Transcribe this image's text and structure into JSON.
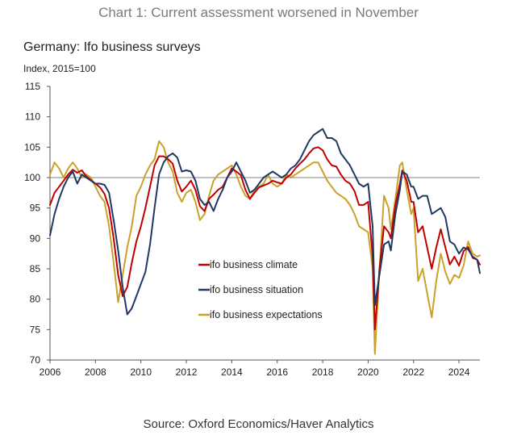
{
  "page": {
    "heading": "Chart 1: Current assessment worsened in November",
    "source": "Source: Oxford Economics/Haver Analytics"
  },
  "colors": {
    "climate": "#c00000",
    "situation": "#1f3864",
    "expectations": "#c9a227",
    "reference": "#9a9a9a",
    "axis": "#555555"
  },
  "chart_data": {
    "type": "line",
    "title": "Germany: Ifo business surveys",
    "ylabel": "Index, 2015=100",
    "xlabel": "",
    "xlim": [
      2006,
      2024.92
    ],
    "ylim": [
      70,
      115
    ],
    "reference_line": 100,
    "x_ticks": [
      2006,
      2008,
      2010,
      2012,
      2014,
      2016,
      2018,
      2020,
      2022,
      2024
    ],
    "y_ticks": [
      70,
      75,
      80,
      85,
      90,
      95,
      100,
      105,
      110,
      115
    ],
    "legend_position": "center-left",
    "series": [
      {
        "name": "ifo business climate",
        "color_key": "climate",
        "points": [
          [
            2006.0,
            95.5
          ],
          [
            2006.2,
            97.5
          ],
          [
            2006.4,
            98.5
          ],
          [
            2006.6,
            99.5
          ],
          [
            2006.8,
            100.5
          ],
          [
            2007.0,
            101.3
          ],
          [
            2007.2,
            100.8
          ],
          [
            2007.4,
            101.2
          ],
          [
            2007.6,
            100.2
          ],
          [
            2007.8,
            99.6
          ],
          [
            2008.0,
            99.0
          ],
          [
            2008.2,
            98.4
          ],
          [
            2008.4,
            97.3
          ],
          [
            2008.6,
            95.0
          ],
          [
            2008.8,
            90.0
          ],
          [
            2009.0,
            84.0
          ],
          [
            2009.2,
            80.5
          ],
          [
            2009.4,
            82.0
          ],
          [
            2009.6,
            86.0
          ],
          [
            2009.8,
            89.5
          ],
          [
            2010.0,
            92.0
          ],
          [
            2010.2,
            95.0
          ],
          [
            2010.4,
            98.5
          ],
          [
            2010.6,
            102.0
          ],
          [
            2010.8,
            103.5
          ],
          [
            2011.0,
            103.5
          ],
          [
            2011.2,
            103.0
          ],
          [
            2011.4,
            102.3
          ],
          [
            2011.6,
            99.5
          ],
          [
            2011.8,
            97.7
          ],
          [
            2012.0,
            98.5
          ],
          [
            2012.2,
            99.5
          ],
          [
            2012.4,
            98.0
          ],
          [
            2012.6,
            95.3
          ],
          [
            2012.8,
            94.5
          ],
          [
            2013.0,
            96.5
          ],
          [
            2013.2,
            97.2
          ],
          [
            2013.4,
            98.0
          ],
          [
            2013.6,
            98.5
          ],
          [
            2013.8,
            100.0
          ],
          [
            2014.0,
            101.5
          ],
          [
            2014.2,
            101.0
          ],
          [
            2014.4,
            100.4
          ],
          [
            2014.6,
            98.0
          ],
          [
            2014.8,
            96.5
          ],
          [
            2015.0,
            97.5
          ],
          [
            2015.2,
            98.4
          ],
          [
            2015.4,
            98.7
          ],
          [
            2015.6,
            99.0
          ],
          [
            2015.8,
            99.5
          ],
          [
            2016.0,
            99.2
          ],
          [
            2016.2,
            99.0
          ],
          [
            2016.4,
            100.0
          ],
          [
            2016.6,
            100.5
          ],
          [
            2016.8,
            101.5
          ],
          [
            2017.0,
            102.3
          ],
          [
            2017.2,
            103.0
          ],
          [
            2017.4,
            104.0
          ],
          [
            2017.6,
            104.8
          ],
          [
            2017.8,
            105.0
          ],
          [
            2018.0,
            104.5
          ],
          [
            2018.2,
            103.0
          ],
          [
            2018.4,
            102.0
          ],
          [
            2018.6,
            101.8
          ],
          [
            2018.8,
            100.5
          ],
          [
            2019.0,
            99.5
          ],
          [
            2019.2,
            99.0
          ],
          [
            2019.4,
            97.8
          ],
          [
            2019.6,
            95.5
          ],
          [
            2019.8,
            95.5
          ],
          [
            2020.0,
            96.0
          ],
          [
            2020.2,
            87.0
          ],
          [
            2020.3,
            75.0
          ],
          [
            2020.5,
            85.0
          ],
          [
            2020.7,
            92.0
          ],
          [
            2020.9,
            91.0
          ],
          [
            2021.0,
            90.0
          ],
          [
            2021.2,
            95.5
          ],
          [
            2021.4,
            99.0
          ],
          [
            2021.5,
            101.2
          ],
          [
            2021.7,
            99.5
          ],
          [
            2021.9,
            96.0
          ],
          [
            2022.0,
            96.0
          ],
          [
            2022.2,
            91.0
          ],
          [
            2022.4,
            92.0
          ],
          [
            2022.6,
            88.5
          ],
          [
            2022.8,
            85.0
          ],
          [
            2023.0,
            88.5
          ],
          [
            2023.2,
            91.5
          ],
          [
            2023.4,
            88.5
          ],
          [
            2023.6,
            85.7
          ],
          [
            2023.8,
            87.0
          ],
          [
            2024.0,
            85.5
          ],
          [
            2024.2,
            87.9
          ],
          [
            2024.4,
            88.6
          ],
          [
            2024.6,
            86.8
          ],
          [
            2024.8,
            86.5
          ],
          [
            2024.92,
            85.7
          ]
        ]
      },
      {
        "name": "ifo business situation",
        "color_key": "situation",
        "points": [
          [
            2006.0,
            90.5
          ],
          [
            2006.2,
            94.0
          ],
          [
            2006.4,
            96.5
          ],
          [
            2006.6,
            98.5
          ],
          [
            2006.8,
            100.0
          ],
          [
            2007.0,
            101.0
          ],
          [
            2007.2,
            99.0
          ],
          [
            2007.4,
            100.5
          ],
          [
            2007.6,
            100.0
          ],
          [
            2007.8,
            99.5
          ],
          [
            2008.0,
            99.0
          ],
          [
            2008.2,
            99.0
          ],
          [
            2008.4,
            98.8
          ],
          [
            2008.6,
            97.5
          ],
          [
            2008.8,
            93.0
          ],
          [
            2009.0,
            88.0
          ],
          [
            2009.2,
            82.0
          ],
          [
            2009.4,
            77.5
          ],
          [
            2009.6,
            78.5
          ],
          [
            2009.8,
            80.5
          ],
          [
            2010.0,
            82.5
          ],
          [
            2010.2,
            84.5
          ],
          [
            2010.4,
            89.0
          ],
          [
            2010.6,
            95.0
          ],
          [
            2010.8,
            100.5
          ],
          [
            2011.0,
            102.5
          ],
          [
            2011.2,
            103.5
          ],
          [
            2011.4,
            104.0
          ],
          [
            2011.6,
            103.3
          ],
          [
            2011.8,
            101.0
          ],
          [
            2012.0,
            101.2
          ],
          [
            2012.2,
            101.0
          ],
          [
            2012.4,
            99.5
          ],
          [
            2012.6,
            96.5
          ],
          [
            2012.8,
            95.5
          ],
          [
            2013.0,
            96.0
          ],
          [
            2013.2,
            94.5
          ],
          [
            2013.4,
            96.5
          ],
          [
            2013.6,
            98.0
          ],
          [
            2013.8,
            100.0
          ],
          [
            2014.0,
            101.0
          ],
          [
            2014.2,
            102.5
          ],
          [
            2014.4,
            101.0
          ],
          [
            2014.6,
            99.5
          ],
          [
            2014.8,
            97.5
          ],
          [
            2015.0,
            98.0
          ],
          [
            2015.2,
            99.0
          ],
          [
            2015.4,
            100.0
          ],
          [
            2015.6,
            100.5
          ],
          [
            2015.8,
            101.0
          ],
          [
            2016.0,
            100.5
          ],
          [
            2016.2,
            100.0
          ],
          [
            2016.4,
            100.5
          ],
          [
            2016.6,
            101.5
          ],
          [
            2016.8,
            102.0
          ],
          [
            2017.0,
            103.0
          ],
          [
            2017.2,
            104.5
          ],
          [
            2017.4,
            106.0
          ],
          [
            2017.6,
            107.0
          ],
          [
            2017.8,
            107.5
          ],
          [
            2018.0,
            108.0
          ],
          [
            2018.2,
            106.5
          ],
          [
            2018.4,
            106.5
          ],
          [
            2018.6,
            106.0
          ],
          [
            2018.8,
            104.0
          ],
          [
            2019.0,
            103.0
          ],
          [
            2019.2,
            102.0
          ],
          [
            2019.4,
            100.5
          ],
          [
            2019.6,
            99.0
          ],
          [
            2019.8,
            98.5
          ],
          [
            2020.0,
            99.0
          ],
          [
            2020.2,
            92.0
          ],
          [
            2020.3,
            79.0
          ],
          [
            2020.5,
            84.0
          ],
          [
            2020.7,
            89.0
          ],
          [
            2020.9,
            89.5
          ],
          [
            2021.0,
            88.0
          ],
          [
            2021.2,
            94.0
          ],
          [
            2021.4,
            98.0
          ],
          [
            2021.5,
            101.0
          ],
          [
            2021.7,
            100.5
          ],
          [
            2021.9,
            98.5
          ],
          [
            2022.0,
            98.5
          ],
          [
            2022.2,
            96.5
          ],
          [
            2022.4,
            97.0
          ],
          [
            2022.6,
            97.0
          ],
          [
            2022.8,
            94.0
          ],
          [
            2023.0,
            94.5
          ],
          [
            2023.2,
            95.0
          ],
          [
            2023.4,
            93.5
          ],
          [
            2023.6,
            89.5
          ],
          [
            2023.8,
            89.0
          ],
          [
            2024.0,
            87.5
          ],
          [
            2024.2,
            88.5
          ],
          [
            2024.4,
            88.2
          ],
          [
            2024.6,
            87.0
          ],
          [
            2024.8,
            86.5
          ],
          [
            2024.92,
            84.3
          ]
        ]
      },
      {
        "name": "ifo business expectations",
        "color_key": "expectations",
        "points": [
          [
            2006.0,
            100.5
          ],
          [
            2006.2,
            102.5
          ],
          [
            2006.4,
            101.5
          ],
          [
            2006.6,
            100.0
          ],
          [
            2006.8,
            101.5
          ],
          [
            2007.0,
            102.5
          ],
          [
            2007.2,
            101.5
          ],
          [
            2007.4,
            100.0
          ],
          [
            2007.6,
            100.5
          ],
          [
            2007.8,
            100.0
          ],
          [
            2008.0,
            98.5
          ],
          [
            2008.2,
            97.0
          ],
          [
            2008.4,
            96.0
          ],
          [
            2008.6,
            92.0
          ],
          [
            2008.8,
            86.0
          ],
          [
            2009.0,
            79.5
          ],
          [
            2009.2,
            84.0
          ],
          [
            2009.4,
            88.5
          ],
          [
            2009.6,
            92.0
          ],
          [
            2009.8,
            97.0
          ],
          [
            2010.0,
            98.5
          ],
          [
            2010.2,
            100.5
          ],
          [
            2010.4,
            102.0
          ],
          [
            2010.6,
            103.0
          ],
          [
            2010.8,
            106.0
          ],
          [
            2011.0,
            105.0
          ],
          [
            2011.2,
            102.5
          ],
          [
            2011.4,
            101.0
          ],
          [
            2011.6,
            97.5
          ],
          [
            2011.8,
            96.0
          ],
          [
            2012.0,
            97.5
          ],
          [
            2012.2,
            98.0
          ],
          [
            2012.4,
            96.0
          ],
          [
            2012.6,
            93.0
          ],
          [
            2012.8,
            94.0
          ],
          [
            2013.0,
            97.0
          ],
          [
            2013.2,
            99.5
          ],
          [
            2013.4,
            100.5
          ],
          [
            2013.6,
            101.0
          ],
          [
            2013.8,
            101.5
          ],
          [
            2014.0,
            102.0
          ],
          [
            2014.2,
            100.5
          ],
          [
            2014.4,
            98.5
          ],
          [
            2014.6,
            97.0
          ],
          [
            2014.8,
            96.5
          ],
          [
            2015.0,
            98.0
          ],
          [
            2015.2,
            98.5
          ],
          [
            2015.4,
            99.0
          ],
          [
            2015.6,
            100.5
          ],
          [
            2015.8,
            99.0
          ],
          [
            2016.0,
            98.5
          ],
          [
            2016.2,
            99.0
          ],
          [
            2016.4,
            100.5
          ],
          [
            2016.6,
            100.0
          ],
          [
            2016.8,
            100.5
          ],
          [
            2017.0,
            101.0
          ],
          [
            2017.2,
            101.5
          ],
          [
            2017.4,
            102.0
          ],
          [
            2017.6,
            102.5
          ],
          [
            2017.8,
            102.5
          ],
          [
            2018.0,
            101.0
          ],
          [
            2018.2,
            99.5
          ],
          [
            2018.4,
            98.5
          ],
          [
            2018.6,
            97.5
          ],
          [
            2018.8,
            97.0
          ],
          [
            2019.0,
            96.5
          ],
          [
            2019.2,
            95.5
          ],
          [
            2019.4,
            94.0
          ],
          [
            2019.6,
            92.0
          ],
          [
            2019.8,
            91.5
          ],
          [
            2020.0,
            91.0
          ],
          [
            2020.2,
            85.0
          ],
          [
            2020.3,
            71.0
          ],
          [
            2020.5,
            85.0
          ],
          [
            2020.7,
            97.0
          ],
          [
            2020.9,
            95.0
          ],
          [
            2021.0,
            91.5
          ],
          [
            2021.2,
            96.5
          ],
          [
            2021.4,
            102.0
          ],
          [
            2021.5,
            102.5
          ],
          [
            2021.7,
            98.0
          ],
          [
            2021.9,
            94.0
          ],
          [
            2022.0,
            95.0
          ],
          [
            2022.2,
            83.0
          ],
          [
            2022.4,
            85.0
          ],
          [
            2022.6,
            81.0
          ],
          [
            2022.8,
            77.0
          ],
          [
            2023.0,
            83.0
          ],
          [
            2023.2,
            87.5
          ],
          [
            2023.4,
            84.5
          ],
          [
            2023.6,
            82.5
          ],
          [
            2023.8,
            84.0
          ],
          [
            2024.0,
            83.5
          ],
          [
            2024.2,
            85.5
          ],
          [
            2024.4,
            89.5
          ],
          [
            2024.6,
            87.5
          ],
          [
            2024.8,
            87.0
          ],
          [
            2024.92,
            87.2
          ]
        ]
      }
    ]
  }
}
